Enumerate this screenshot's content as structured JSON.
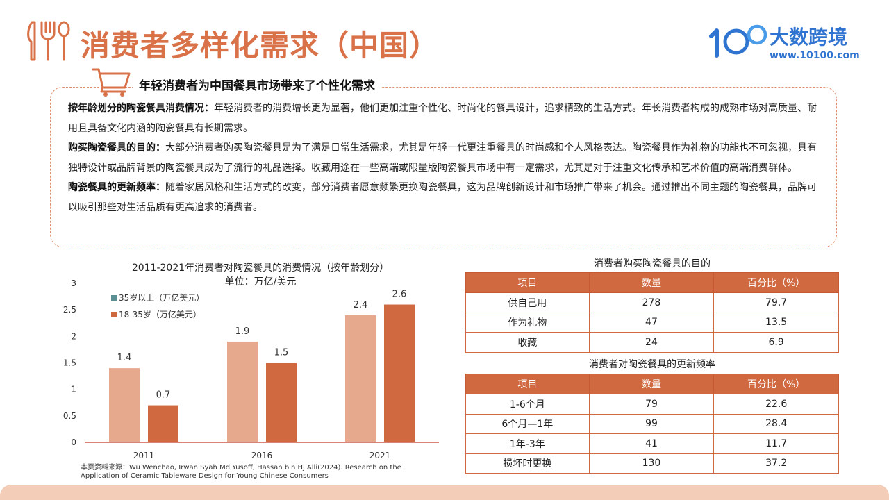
{
  "header": {
    "title": "消费者多样化需求（中国）",
    "brand_name": "大数跨境",
    "brand_url": "www.10100.com"
  },
  "section": {
    "title": "年轻消费者为中国餐具市场带来了个性化需求",
    "paragraphs": [
      {
        "label": "按年龄划分的陶瓷餐具消费情况：",
        "text": "年轻消费者的消费增长更为显著，他们更加注重个性化、时尚化的餐具设计，追求精致的生活方式。年长消费者构成的成熟市场对高质量、耐用且具备文化内涵的陶瓷餐具有长期需求。"
      },
      {
        "label": "购买陶瓷餐具的目的：",
        "text": "大部分消费者购买陶瓷餐具是为了满足日常生活需求，尤其是年轻一代更注重餐具的时尚感和个人风格表达。陶瓷餐具作为礼物的功能也不可忽视，具有独特设计或品牌背景的陶瓷餐具成为了流行的礼品选择。收藏用途在一些高端或限量版陶瓷餐具市场中有一定需求，尤其是对于注重文化传承和艺术价值的高端消费群体。"
      },
      {
        "label": "陶瓷餐具的更新频率：",
        "text": "随着家居风格和生活方式的改变，部分消费者愿意频繁更换陶瓷餐具，这为品牌创新设计和市场推广带来了机会。通过推出不同主题的陶瓷餐具，品牌可以吸引那些对生活品质有更高追求的消费者。"
      }
    ]
  },
  "chart_data": {
    "type": "bar",
    "title": "2011-2021年消费者对陶瓷餐具的消费情况（按年龄划分）",
    "subtitle": "单位：万亿/美元",
    "categories": [
      "2011",
      "2016",
      "2021"
    ],
    "series": [
      {
        "name": "35岁以上（万亿美元）",
        "values": [
          1.4,
          1.9,
          2.4
        ],
        "color": "#e6a98d"
      },
      {
        "name": "18-35岁（万亿美元）",
        "values": [
          0.7,
          1.5,
          2.6
        ],
        "color": "#d0693f"
      }
    ],
    "legend_marker_colors": [
      "#5a8f94",
      "#d0693f"
    ],
    "yticks": [
      "0",
      "0.5",
      "1",
      "1.5",
      "2",
      "2.5",
      "3"
    ],
    "ylim": [
      0,
      3
    ],
    "grid": false,
    "legend_position": "top-left",
    "axis_color": "#c0392b"
  },
  "source_note": "本页资料来源：Wu Wenchao, Irwan Syah Md Yusoff, Hassan bin Hj Alli(2024). Research on the Application of Ceramic Tableware Design for Young Chinese Consumers",
  "tables": {
    "purpose": {
      "title": "消费者购买陶瓷餐具的目的",
      "headers": [
        "项目",
        "数量",
        "百分比（%）"
      ],
      "rows": [
        [
          "供自己用",
          "278",
          "79.7"
        ],
        [
          "作为礼物",
          "47",
          "13.5"
        ],
        [
          "收藏",
          "24",
          "6.9"
        ]
      ]
    },
    "frequency": {
      "title": "消费者对陶瓷餐具的更新频率",
      "headers": [
        "项目",
        "数量",
        "百分比（%）"
      ],
      "rows": [
        [
          "1-6个月",
          "79",
          "22.6"
        ],
        [
          "6个月—1年",
          "99",
          "28.4"
        ],
        [
          "1年-3年",
          "41",
          "11.7"
        ],
        [
          "损坏时更换",
          "130",
          "37.2"
        ]
      ]
    }
  },
  "colors": {
    "accent": "#d97149",
    "table_header": "#d0693f",
    "brand_blue": "#2f74d0",
    "footer": "#f3cdb8"
  },
  "icons": {
    "utensils": "fork-knife-spoon-icon",
    "cart": "shopping-cart-icon",
    "logo": "brand-logo-icon"
  }
}
